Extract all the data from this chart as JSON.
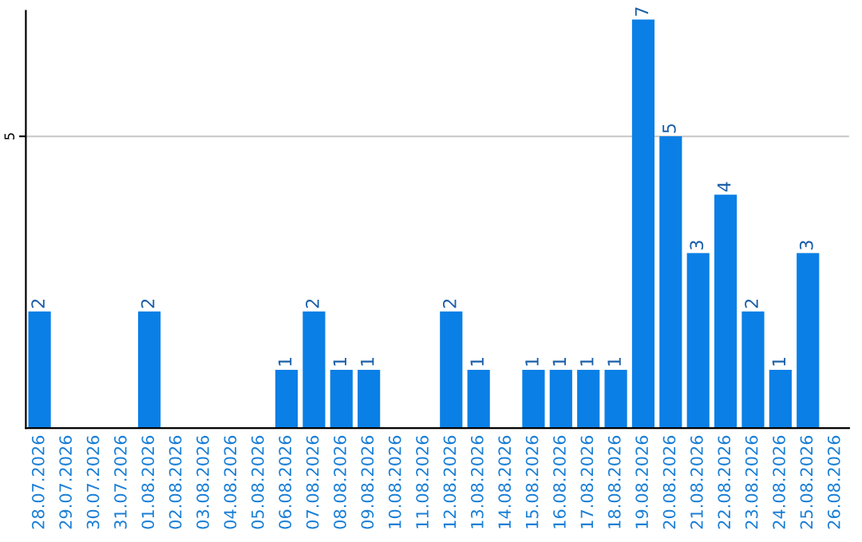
{
  "chart_data": {
    "type": "bar",
    "categories": [
      "28.07.2026",
      "29.07.2026",
      "30.07.2026",
      "31.07.2026",
      "01.08.2026",
      "02.08.2026",
      "03.08.2026",
      "04.08.2026",
      "05.08.2026",
      "06.08.2026",
      "07.08.2026",
      "08.08.2026",
      "09.08.2026",
      "10.08.2026",
      "11.08.2026",
      "12.08.2026",
      "13.08.2026",
      "14.08.2026",
      "15.08.2026",
      "16.08.2026",
      "17.08.2026",
      "18.08.2026",
      "19.08.2026",
      "20.08.2026",
      "21.08.2026",
      "22.08.2026",
      "23.08.2026",
      "24.08.2026",
      "25.08.2026",
      "26.08.2026"
    ],
    "values": [
      2,
      0,
      0,
      0,
      2,
      0,
      0,
      0,
      0,
      1,
      2,
      1,
      1,
      0,
      0,
      2,
      1,
      0,
      1,
      1,
      1,
      1,
      7,
      5,
      3,
      4,
      2,
      1,
      3,
      0
    ],
    "value_labels": [
      "2",
      null,
      null,
      null,
      "2",
      null,
      null,
      null,
      null,
      "1",
      "2",
      "1",
      "1",
      null,
      null,
      "2",
      "1",
      null,
      "1",
      "1",
      "1",
      "1",
      "7",
      "5",
      "3",
      "4",
      "2",
      "1",
      "3",
      null
    ],
    "color": "#0a7fe6",
    "ylim": [
      0,
      7.15
    ],
    "yticks": [
      5
    ],
    "grid": "y"
  }
}
